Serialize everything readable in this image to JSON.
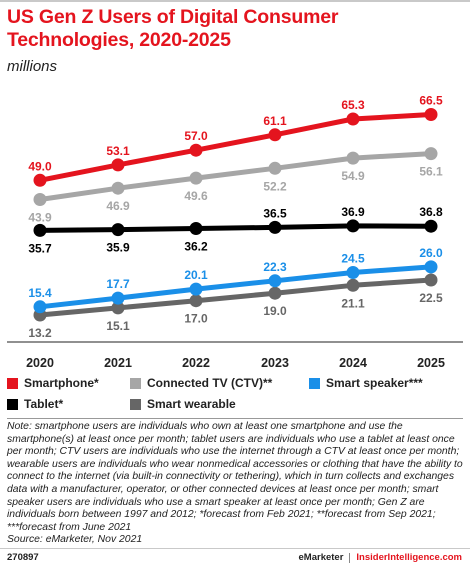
{
  "title": "US Gen Z Users of Digital Consumer Technologies, 2020-2025",
  "subtitle": "millions",
  "chart_data": {
    "type": "line",
    "categories": [
      "2020",
      "2021",
      "2022",
      "2023",
      "2024",
      "2025"
    ],
    "series": [
      {
        "name": "Smartphone*",
        "color": "#e4141e",
        "values": [
          49.0,
          53.1,
          57.0,
          61.1,
          65.3,
          66.5
        ],
        "labels": [
          "49.0",
          "53.1",
          "57.0",
          "61.1",
          "65.3",
          "66.5"
        ],
        "label_pos": "above"
      },
      {
        "name": "Connected TV (CTV)**",
        "color": "#a6a6a6",
        "values": [
          43.9,
          46.9,
          49.6,
          52.2,
          54.9,
          56.1
        ],
        "labels": [
          "43.9",
          "46.9",
          "49.6",
          "52.2",
          "54.9",
          "56.1"
        ],
        "label_pos": "below"
      },
      {
        "name": "Tablet*",
        "color": "#000000",
        "values": [
          35.7,
          35.9,
          36.2,
          36.5,
          36.9,
          36.8
        ],
        "labels": [
          "35.7",
          "35.9",
          "36.2",
          "36.5",
          "36.9",
          "36.8"
        ],
        "label_pos": "mixed"
      },
      {
        "name": "Smart speaker***",
        "color": "#1a8fe8",
        "values": [
          15.4,
          17.7,
          20.1,
          22.3,
          24.5,
          26.0
        ],
        "labels": [
          "15.4",
          "17.7",
          "20.1",
          "22.3",
          "24.5",
          "26.0"
        ],
        "label_pos": "above"
      },
      {
        "name": "Smart wearable",
        "color": "#666666",
        "values": [
          13.2,
          15.1,
          17.0,
          19.0,
          21.1,
          22.5
        ],
        "labels": [
          "13.2",
          "15.1",
          "17.0",
          "19.0",
          "21.1",
          "22.5"
        ],
        "label_pos": "below"
      }
    ],
    "grid": false
  },
  "legend": [
    {
      "label": "Smartphone*",
      "color": "#e4141e"
    },
    {
      "label": "Connected TV (CTV)**",
      "color": "#a6a6a6"
    },
    {
      "label": "Smart speaker***",
      "color": "#1a8fe8"
    },
    {
      "label": "Tablet*",
      "color": "#000000"
    },
    {
      "label": "Smart wearable",
      "color": "#666666"
    }
  ],
  "notes": "Note: smartphone users are individuals who own at least one smartphone and use the smartphone(s) at least once per month; tablet users are individuals who use a tablet at least once per month; CTV users are individuals who use the internet through a CTV at least once per month; wearable users are individuals who wear nonmedical accessories or clothing that have the ability to connect to the internet (via built-in connectivity or tethering), which in turn collects and exchanges data with a manufacturer, operator, or other connected devices at least once per month; smart speaker users are individuals who use a smart speaker at least once per month; Gen Z are individuals born between 1997 and 2012; *forecast from Feb 2021; **forecast from Sep 2021; ***forecast from June 2021",
  "source": "Source: eMarketer, Nov 2021",
  "footer": {
    "chart_id": "270897",
    "brand_a": "eMarketer",
    "brand_b": "InsiderIntelligence.com"
  }
}
